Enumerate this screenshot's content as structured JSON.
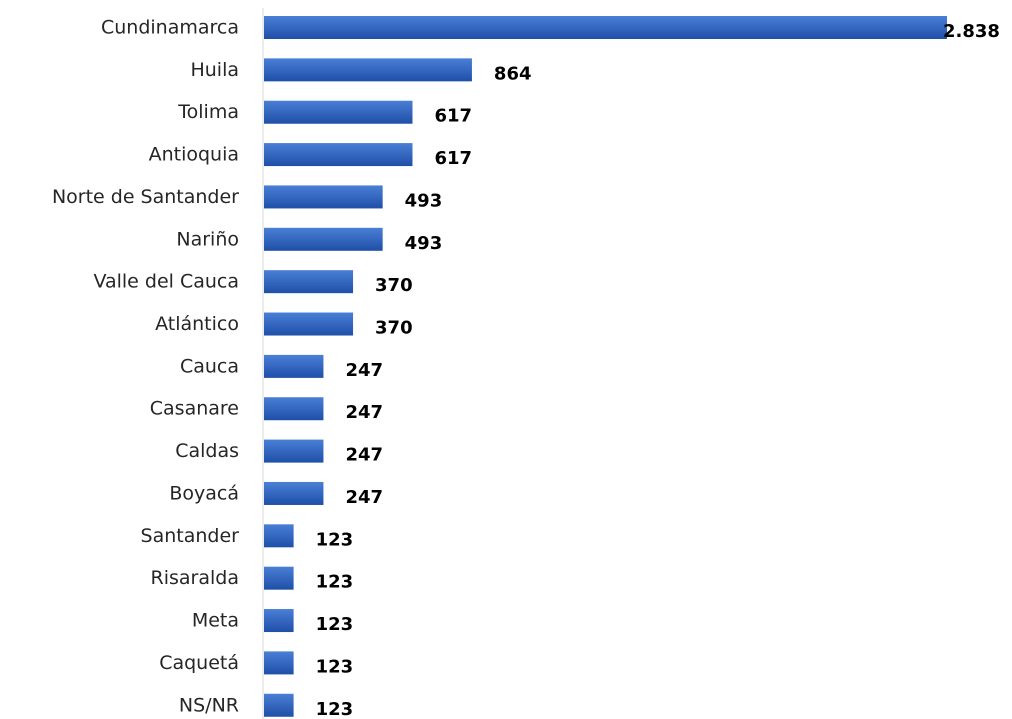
{
  "chart_data": {
    "type": "bar",
    "orientation": "horizontal",
    "categories": [
      "Cundinamarca",
      "Huila",
      "Tolima",
      "Antioquia",
      "Norte de Santander",
      "Nariño",
      "Valle del Cauca",
      "Atlántico",
      "Cauca",
      "Casanare",
      "Caldas",
      "Boyacá",
      "Santander",
      "Risaralda",
      "Meta",
      "Caquetá",
      "NS/NR"
    ],
    "values": [
      2838,
      864,
      617,
      617,
      493,
      493,
      370,
      370,
      247,
      247,
      247,
      247,
      123,
      123,
      123,
      123,
      123
    ],
    "value_labels": [
      "2.838",
      "864",
      "617",
      "617",
      "493",
      "493",
      "370",
      "370",
      "247",
      "247",
      "247",
      "247",
      "123",
      "123",
      "123",
      "123",
      "123"
    ],
    "title": "",
    "xlabel": "",
    "ylabel": "",
    "xlim": [
      0,
      2838
    ],
    "grid": false,
    "legend": "none",
    "colors": {
      "bar_top": "#4a7fd6",
      "bar_bottom": "#1f4fa8",
      "axis": "#d9d9d9"
    }
  }
}
